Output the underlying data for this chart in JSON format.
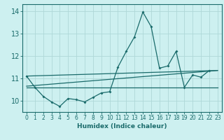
{
  "xlabel": "Humidex (Indice chaleur)",
  "bg_color": "#cdf0f0",
  "grid_color": "#aed8d8",
  "line_color": "#1a6b6b",
  "xlim": [
    -0.5,
    23.5
  ],
  "ylim": [
    9.5,
    14.3
  ],
  "yticks": [
    10,
    11,
    12,
    13,
    14
  ],
  "xticks": [
    0,
    1,
    2,
    3,
    4,
    5,
    6,
    7,
    8,
    9,
    10,
    11,
    12,
    13,
    14,
    15,
    16,
    17,
    18,
    19,
    20,
    21,
    22,
    23
  ],
  "series": [
    [
      0,
      11.1
    ],
    [
      1,
      10.6
    ],
    [
      2,
      10.2
    ],
    [
      3,
      9.95
    ],
    [
      4,
      9.75
    ],
    [
      5,
      10.1
    ],
    [
      6,
      10.05
    ],
    [
      7,
      9.95
    ],
    [
      8,
      10.15
    ],
    [
      9,
      10.35
    ],
    [
      10,
      10.4
    ],
    [
      11,
      11.5
    ],
    [
      12,
      12.2
    ],
    [
      13,
      12.85
    ],
    [
      14,
      13.95
    ],
    [
      15,
      13.3
    ],
    [
      16,
      11.45
    ],
    [
      17,
      11.55
    ],
    [
      18,
      12.2
    ],
    [
      19,
      10.6
    ],
    [
      20,
      11.15
    ],
    [
      21,
      11.05
    ],
    [
      22,
      11.35
    ]
  ],
  "line_upper": [
    [
      0,
      11.1
    ],
    [
      23,
      11.35
    ]
  ],
  "line_mid": [
    [
      0,
      10.65
    ],
    [
      23,
      11.35
    ]
  ],
  "line_lower": [
    [
      0,
      10.6
    ],
    [
      23,
      10.6
    ]
  ]
}
